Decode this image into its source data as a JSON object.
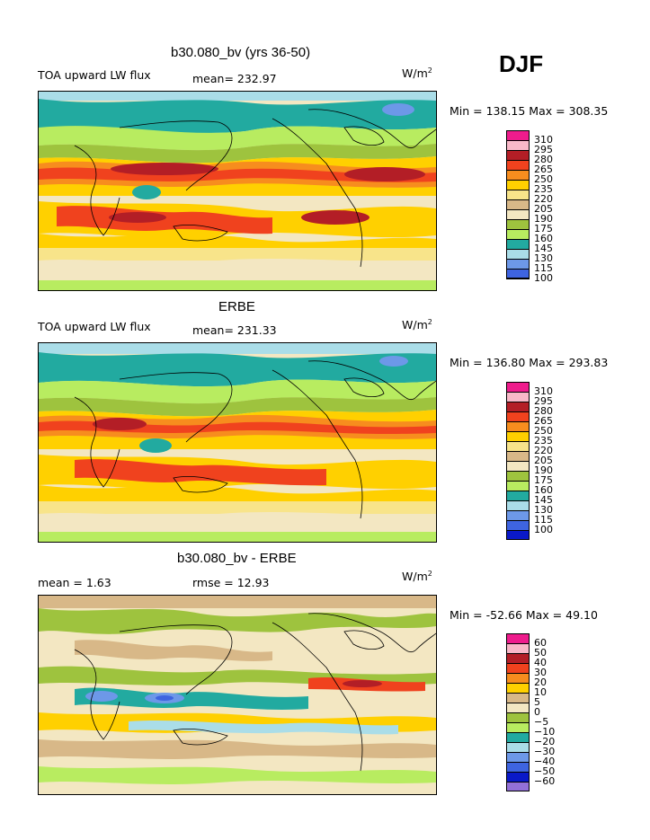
{
  "season": "DJF",
  "units_base": "W/m",
  "units_exp": "2",
  "panels": [
    {
      "title": "b30.080_bv (yrs 36-50)",
      "left_label": "TOA upward LW flux",
      "mid_label": "mean= 232.97",
      "minmax": "Min = 138.15 Max = 308.35",
      "legend_ticks": [
        "310",
        "295",
        "280",
        "265",
        "250",
        "235",
        "220",
        "205",
        "190",
        "175",
        "160",
        "145",
        "130",
        "115",
        "100"
      ]
    },
    {
      "title": "ERBE",
      "left_label": "TOA upward LW flux",
      "mid_label": "mean= 231.33",
      "minmax": "Min = 136.80 Max = 293.83",
      "legend_ticks": [
        "310",
        "295",
        "280",
        "265",
        "250",
        "235",
        "220",
        "205",
        "190",
        "175",
        "160",
        "145",
        "130",
        "115",
        "100"
      ]
    },
    {
      "title": "b30.080_bv - ERBE",
      "left_label": "mean =    1.63",
      "mid_label": "rmse =   12.93",
      "minmax": "Min = -52.66 Max =   49.10",
      "legend_ticks": [
        "60",
        "50",
        "40",
        "30",
        "20",
        "10",
        "5",
        "0",
        "−5",
        "−10",
        "−20",
        "−30",
        "−40",
        "−50",
        "−60"
      ]
    }
  ],
  "colors": {
    "legend": [
      "#ee1c8c",
      "#f9b8c8",
      "#b31e26",
      "#f0421e",
      "#f78d1e",
      "#ffd000",
      "#f8e48a",
      "#d8b888",
      "#f3e7c2",
      "#9ec33e",
      "#b8ec60",
      "#22aaa0",
      "#aadde8",
      "#6d98e8",
      "#3e64e0",
      "#0a19c8",
      "#9370d8"
    ]
  }
}
